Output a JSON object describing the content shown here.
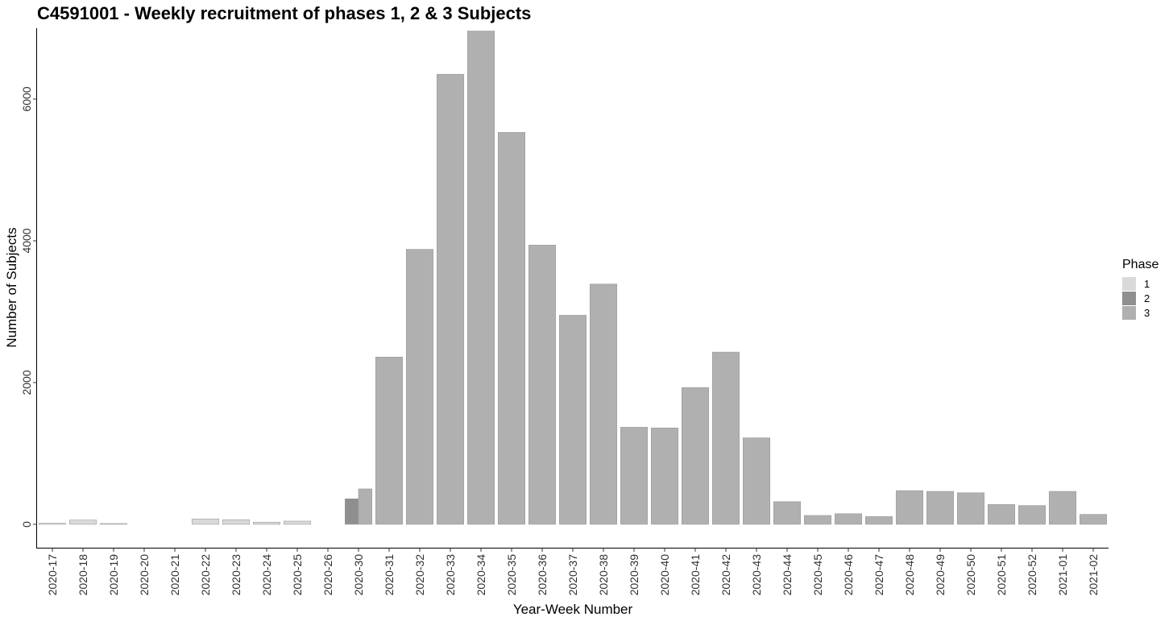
{
  "chart_data": {
    "type": "bar",
    "title": "C4591001 - Weekly recruitment of phases 1, 2 & 3 Subjects",
    "xlabel": "Year-Week Number",
    "ylabel": "Number of Subjects",
    "ylim": [
      -330,
      7000
    ],
    "yticks": [
      0,
      2000,
      4000,
      6000
    ],
    "grid": false,
    "legend": {
      "title": "Phase",
      "position": "right",
      "items": [
        {
          "label": "1",
          "color": "#d9d9d9"
        },
        {
          "label": "2",
          "color": "#8f8f8f"
        },
        {
          "label": "3",
          "color": "#b0b0b0"
        }
      ]
    },
    "categories": [
      "2020-17",
      "2020-18",
      "2020-19",
      "2020-20",
      "2020-21",
      "2020-22",
      "2020-23",
      "2020-24",
      "2020-25",
      "2020-26",
      "2020-30",
      "2020-31",
      "2020-32",
      "2020-33",
      "2020-34",
      "2020-35",
      "2020-36",
      "2020-37",
      "2020-38",
      "2020-39",
      "2020-40",
      "2020-41",
      "2020-42",
      "2020-43",
      "2020-44",
      "2020-45",
      "2020-46",
      "2020-47",
      "2020-48",
      "2020-49",
      "2020-50",
      "2020-51",
      "2020-52",
      "2021-01",
      "2021-02"
    ],
    "series": [
      {
        "name": "1",
        "color": "#d9d9d9",
        "values": [
          15,
          60,
          8,
          0,
          0,
          75,
          65,
          30,
          45,
          0,
          0,
          0,
          0,
          0,
          0,
          0,
          0,
          0,
          0,
          0,
          0,
          0,
          0,
          0,
          0,
          0,
          0,
          0,
          0,
          0,
          0,
          0,
          0,
          0,
          0
        ]
      },
      {
        "name": "2",
        "color": "#8f8f8f",
        "values": [
          0,
          0,
          0,
          0,
          0,
          0,
          0,
          0,
          0,
          0,
          360,
          0,
          0,
          0,
          0,
          0,
          0,
          0,
          0,
          0,
          0,
          0,
          0,
          0,
          0,
          0,
          0,
          0,
          0,
          0,
          0,
          0,
          0,
          0,
          0
        ]
      },
      {
        "name": "3",
        "color": "#b0b0b0",
        "values": [
          0,
          0,
          0,
          0,
          0,
          0,
          0,
          0,
          0,
          0,
          500,
          2360,
          3880,
          6350,
          6960,
          5530,
          3940,
          2950,
          3390,
          1370,
          1360,
          1930,
          2430,
          1220,
          320,
          125,
          150,
          110,
          475,
          465,
          445,
          280,
          265,
          465,
          140
        ]
      }
    ]
  }
}
